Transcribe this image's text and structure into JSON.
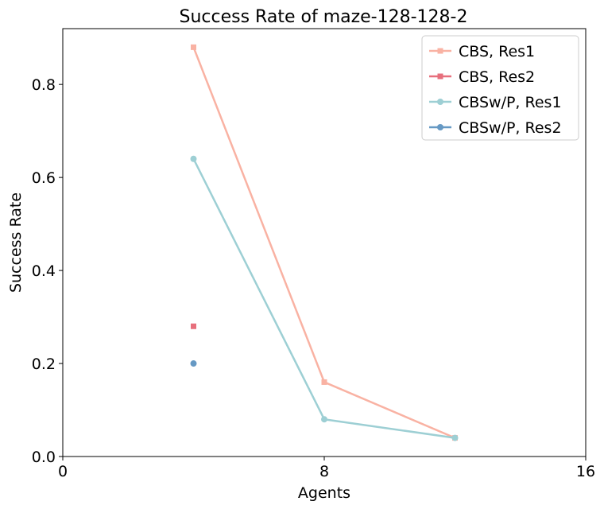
{
  "chart_data": {
    "type": "line",
    "title": "Success Rate of maze-128-128-2",
    "xlabel": "Agents",
    "ylabel": "Success Rate",
    "xlim": [
      0,
      16
    ],
    "ylim": [
      0,
      0.92
    ],
    "xticks": [
      0,
      8,
      16
    ],
    "xtick_labels": [
      "0",
      "8",
      "16"
    ],
    "yticks": [
      0.0,
      0.2,
      0.4,
      0.6,
      0.8
    ],
    "ytick_labels": [
      "0.0",
      "0.2",
      "0.4",
      "0.6",
      "0.8"
    ],
    "grid": false,
    "legend_position": "top-right",
    "series": [
      {
        "name": "CBS, Res1",
        "color": "#f9b2a3",
        "marker": "square",
        "x": [
          4,
          8,
          12
        ],
        "y": [
          0.88,
          0.16,
          0.04
        ]
      },
      {
        "name": "CBS, Res2",
        "color": "#e76f7c",
        "marker": "square",
        "x": [
          4
        ],
        "y": [
          0.28
        ]
      },
      {
        "name": "CBSw/P, Res1",
        "color": "#9dcfd4",
        "marker": "circle",
        "x": [
          4,
          8,
          12
        ],
        "y": [
          0.64,
          0.08,
          0.04
        ]
      },
      {
        "name": "CBSw/P, Res2",
        "color": "#6699c4",
        "marker": "circle",
        "x": [
          4
        ],
        "y": [
          0.2
        ]
      }
    ]
  }
}
